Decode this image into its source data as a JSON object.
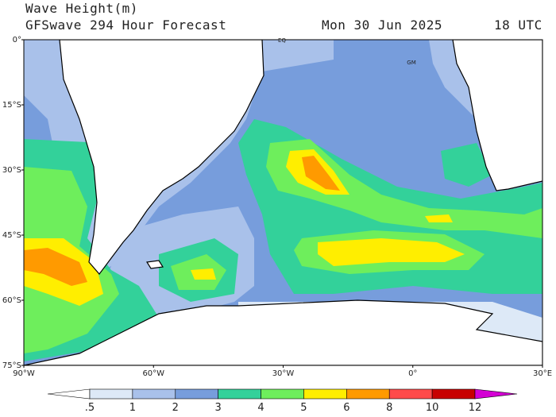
{
  "header": {
    "title": "Wave Height(m)",
    "subtitle": "GFSwave 294 Hour Forecast",
    "date": "Mon 30 Jun 2025",
    "time": "18 UTC"
  },
  "map": {
    "lat_labels": [
      "0°",
      "15°S",
      "30°S",
      "45°S",
      "60°S",
      "75°S"
    ],
    "lon_labels": [
      "90°W",
      "60°W",
      "30°W",
      "0°",
      "30°E"
    ],
    "place_labels": [
      "EQ",
      "GM"
    ]
  },
  "colorbar": {
    "ticks": [
      {
        "value": 0.5,
        "label": ".5"
      },
      1,
      2,
      3,
      4,
      5,
      6,
      8,
      10,
      12
    ],
    "colors": [
      "#ffffff",
      "#dde9f7",
      "#a9c1ea",
      "#779ddc",
      "#33d19a",
      "#6eee5c",
      "#ffee00",
      "#ff9a00",
      "#ff4a4a",
      "#c80000",
      "#d400d4"
    ]
  }
}
